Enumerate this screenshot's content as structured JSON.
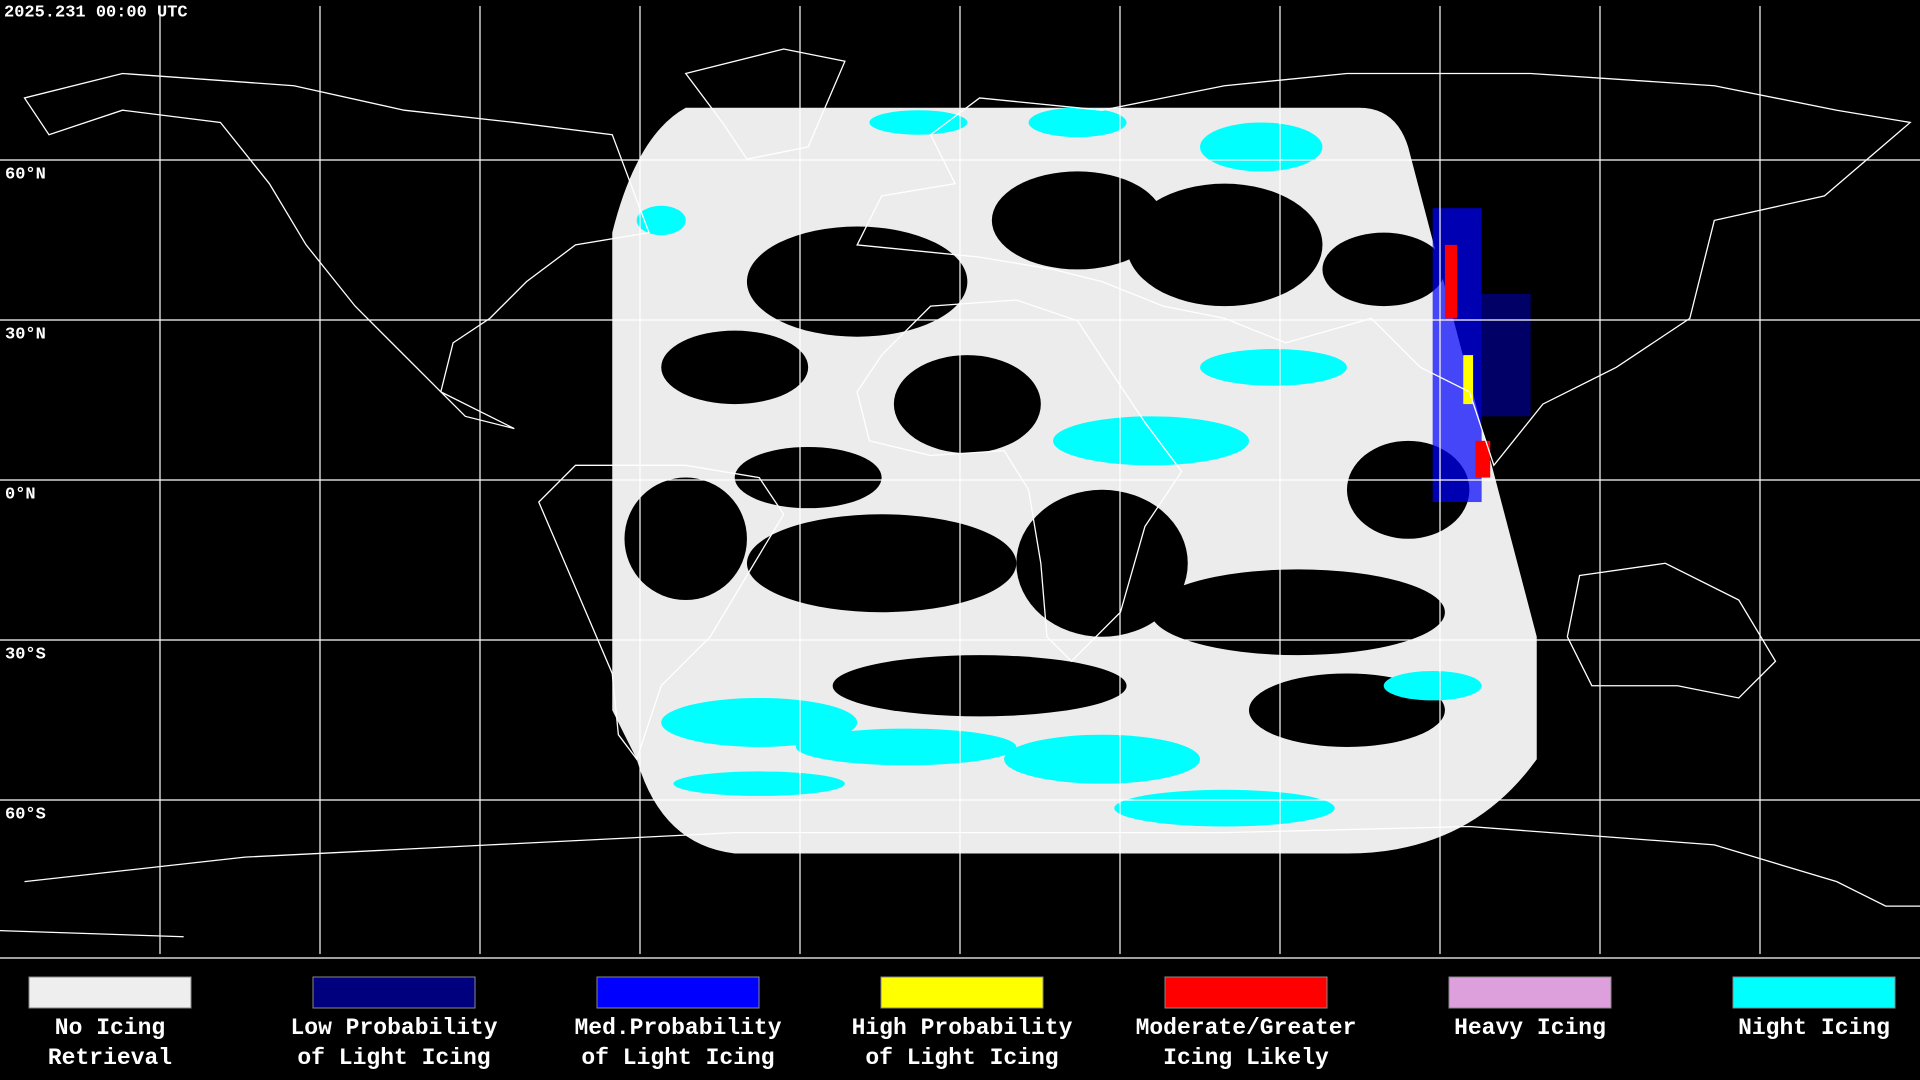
{
  "header": {
    "timestamp": "2025.231 00:00 UTC"
  },
  "map": {
    "latitude_labels": [
      "60°N",
      "30°N",
      "0°N",
      "30°S",
      "60°S"
    ]
  },
  "legend": {
    "items": [
      {
        "label": [
          "No Icing",
          "Retrieval"
        ],
        "color": "#eeeeee"
      },
      {
        "label": [
          "Low Probability",
          "of Light Icing"
        ],
        "color": "#00007f"
      },
      {
        "label": [
          "Med.Probability",
          "of Light Icing"
        ],
        "color": "#0000ff"
      },
      {
        "label": [
          "High Probability",
          "of Light Icing"
        ],
        "color": "#ffff00"
      },
      {
        "label": [
          "Moderate/Greater",
          "Icing Likely"
        ],
        "color": "#ff0000"
      },
      {
        "label": [
          "Heavy Icing"
        ],
        "color": "#dda0dd"
      },
      {
        "label": [
          "Night Icing"
        ],
        "color": "#00ffff"
      }
    ]
  }
}
